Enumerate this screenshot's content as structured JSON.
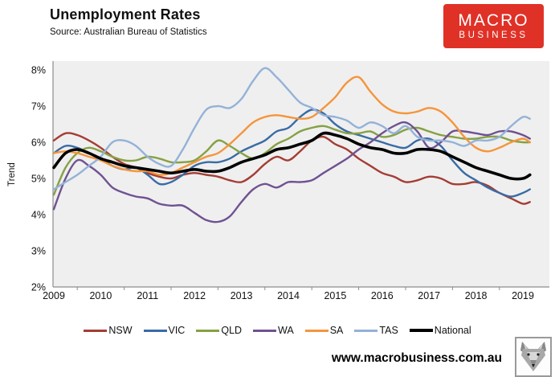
{
  "header": {
    "title": "Unemployment Rates",
    "source": "Source: Australian Bureau of Statistics"
  },
  "logo": {
    "line1": "MACRO",
    "line2": "BUSINESS",
    "bg_color": "#E03127"
  },
  "footer": {
    "url": "www.macrobusiness.com.au",
    "icon": "wolf-logo"
  },
  "chart_data": {
    "type": "line",
    "title": "Unemployment Rates",
    "xlabel": "",
    "ylabel": "Trend",
    "ylim": [
      2,
      8
    ],
    "y_tick_step": 1,
    "y_tick_suffix": "%",
    "x_tick_labels": [
      "2009",
      "2010",
      "2011",
      "2012",
      "2013",
      "2014",
      "2015",
      "2016",
      "2017",
      "2018",
      "2019"
    ],
    "plot_background": "#EFEFEF",
    "axis_color": "#8C8C8C",
    "grid": false,
    "legend_position": "bottom",
    "x": [
      2009.0,
      2009.25,
      2009.5,
      2009.75,
      2010.0,
      2010.25,
      2010.5,
      2010.75,
      2011.0,
      2011.25,
      2011.5,
      2011.75,
      2012.0,
      2012.25,
      2012.5,
      2012.75,
      2013.0,
      2013.25,
      2013.5,
      2013.75,
      2014.0,
      2014.25,
      2014.5,
      2014.75,
      2015.0,
      2015.25,
      2015.5,
      2015.75,
      2016.0,
      2016.25,
      2016.5,
      2016.75,
      2017.0,
      2017.25,
      2017.5,
      2017.75,
      2018.0,
      2018.25,
      2018.5,
      2018.75,
      2019.0,
      2019.15
    ],
    "series": [
      {
        "name": "NSW",
        "color": "#A43D34",
        "width": 2.4,
        "values": [
          6.05,
          6.25,
          6.2,
          6.05,
          5.85,
          5.6,
          5.4,
          5.3,
          5.15,
          5.05,
          5.0,
          5.1,
          5.15,
          5.1,
          5.05,
          4.95,
          4.9,
          5.1,
          5.4,
          5.6,
          5.5,
          5.75,
          6.05,
          6.15,
          5.95,
          5.8,
          5.55,
          5.35,
          5.15,
          5.05,
          4.9,
          4.95,
          5.05,
          5.0,
          4.85,
          4.85,
          4.9,
          4.8,
          4.6,
          4.45,
          4.3,
          4.35
        ]
      },
      {
        "name": "VIC",
        "color": "#396BA5",
        "width": 2.4,
        "values": [
          5.7,
          5.9,
          5.85,
          5.7,
          5.55,
          5.35,
          5.25,
          5.3,
          5.1,
          4.85,
          4.9,
          5.1,
          5.35,
          5.45,
          5.45,
          5.55,
          5.75,
          5.9,
          6.05,
          6.3,
          6.4,
          6.7,
          6.9,
          6.8,
          6.5,
          6.3,
          6.2,
          6.1,
          6.0,
          5.9,
          5.85,
          6.05,
          6.1,
          5.9,
          5.5,
          5.15,
          4.95,
          4.75,
          4.6,
          4.5,
          4.6,
          4.7
        ]
      },
      {
        "name": "QLD",
        "color": "#86A144",
        "width": 2.4,
        "values": [
          4.55,
          5.3,
          5.7,
          5.85,
          5.75,
          5.6,
          5.5,
          5.5,
          5.6,
          5.55,
          5.45,
          5.45,
          5.5,
          5.75,
          6.05,
          5.9,
          5.7,
          5.55,
          5.7,
          5.95,
          6.1,
          6.3,
          6.4,
          6.45,
          6.35,
          6.25,
          6.25,
          6.3,
          6.15,
          6.2,
          6.35,
          6.4,
          6.3,
          6.2,
          6.15,
          6.1,
          6.1,
          6.15,
          6.15,
          6.05,
          6.0,
          6.0
        ]
      },
      {
        "name": "WA",
        "color": "#6F5291",
        "width": 2.4,
        "values": [
          4.15,
          5.0,
          5.5,
          5.35,
          5.1,
          4.75,
          4.6,
          4.5,
          4.45,
          4.3,
          4.25,
          4.25,
          4.05,
          3.85,
          3.8,
          3.95,
          4.35,
          4.7,
          4.85,
          4.75,
          4.9,
          4.9,
          4.95,
          5.15,
          5.35,
          5.55,
          5.8,
          6.0,
          6.25,
          6.45,
          6.55,
          6.3,
          5.85,
          6.0,
          6.3,
          6.3,
          6.25,
          6.2,
          6.3,
          6.3,
          6.2,
          6.1
        ]
      },
      {
        "name": "SA",
        "color": "#F5953B",
        "width": 2.4,
        "values": [
          5.7,
          5.75,
          5.7,
          5.6,
          5.5,
          5.35,
          5.25,
          5.2,
          5.2,
          5.1,
          5.15,
          5.3,
          5.45,
          5.6,
          5.7,
          5.95,
          6.25,
          6.55,
          6.7,
          6.75,
          6.7,
          6.65,
          6.7,
          6.95,
          7.25,
          7.65,
          7.8,
          7.4,
          7.05,
          6.85,
          6.8,
          6.85,
          6.95,
          6.85,
          6.55,
          6.15,
          5.85,
          5.75,
          5.85,
          6.0,
          6.1,
          6.0
        ]
      },
      {
        "name": "TAS",
        "color": "#94B2D8",
        "width": 2.4,
        "values": [
          4.7,
          4.9,
          5.1,
          5.35,
          5.6,
          6.0,
          6.05,
          5.9,
          5.6,
          5.4,
          5.35,
          5.8,
          6.4,
          6.9,
          7.0,
          6.95,
          7.2,
          7.7,
          8.05,
          7.8,
          7.45,
          7.1,
          6.95,
          6.75,
          6.7,
          6.6,
          6.4,
          6.55,
          6.45,
          6.25,
          6.45,
          6.15,
          6.05,
          6.05,
          6.0,
          5.9,
          6.05,
          6.05,
          6.15,
          6.45,
          6.7,
          6.65
        ]
      },
      {
        "name": "National",
        "color": "#000000",
        "width": 3.6,
        "values": [
          5.3,
          5.7,
          5.8,
          5.7,
          5.55,
          5.45,
          5.35,
          5.3,
          5.25,
          5.2,
          5.15,
          5.2,
          5.25,
          5.2,
          5.2,
          5.3,
          5.45,
          5.55,
          5.65,
          5.8,
          5.85,
          5.95,
          6.05,
          6.25,
          6.2,
          6.1,
          5.95,
          5.85,
          5.8,
          5.7,
          5.7,
          5.8,
          5.8,
          5.75,
          5.6,
          5.45,
          5.3,
          5.2,
          5.1,
          5.0,
          5.0,
          5.1
        ]
      }
    ]
  }
}
